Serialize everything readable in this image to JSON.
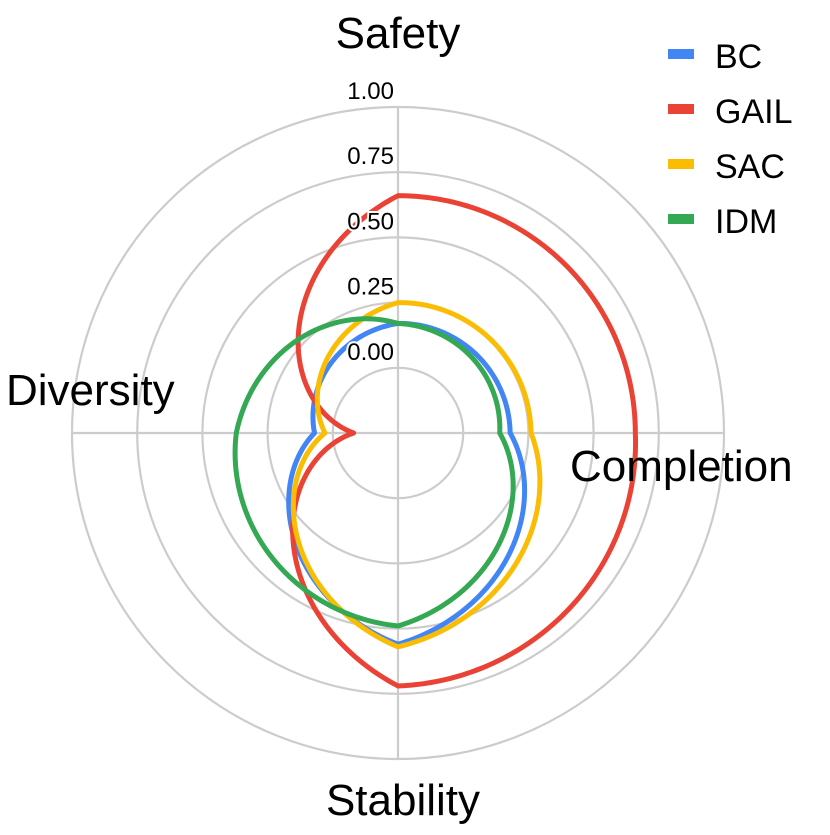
{
  "chart_data": {
    "type": "radar",
    "axes": [
      "Safety",
      "Completion",
      "Stability",
      "Diversity"
    ],
    "rlim": [
      -0.25,
      1.0
    ],
    "r_ticks": [
      "0.00",
      "0.25",
      "0.50",
      "0.75",
      "1.00"
    ],
    "r_tick_values": [
      0.0,
      0.25,
      0.5,
      0.75,
      1.0
    ],
    "grid": true,
    "legend_position": "top-right",
    "series": [
      {
        "name": "BC",
        "color": "#4285F4",
        "values": [
          0.17,
          0.18,
          0.56,
          0.07
        ]
      },
      {
        "name": "GAIL",
        "color": "#EA4335",
        "values": [
          0.66,
          0.66,
          0.72,
          -0.08
        ]
      },
      {
        "name": "SAC",
        "color": "#FBBC04",
        "values": [
          0.25,
          0.26,
          0.57,
          0.03
        ]
      },
      {
        "name": "IDM",
        "color": "#34A853",
        "values": [
          0.17,
          0.14,
          0.49,
          0.37
        ]
      }
    ]
  }
}
